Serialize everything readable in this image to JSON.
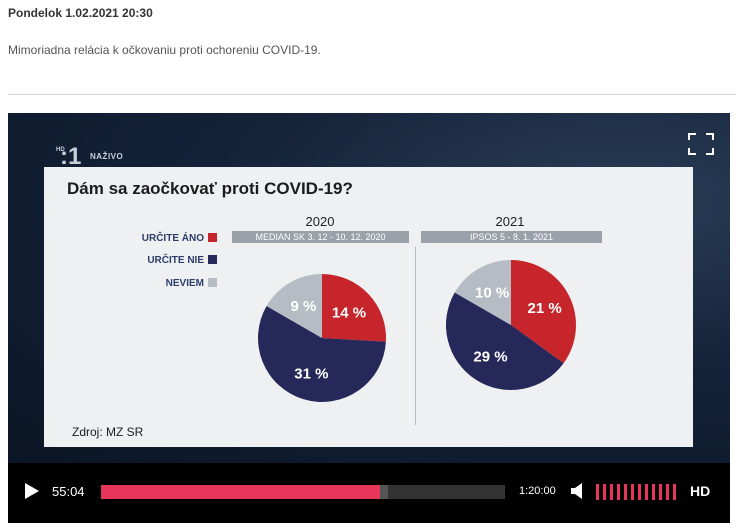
{
  "article": {
    "date": "Pondelok 1.02.2021 20:30",
    "description": "Mimoriadna relácia k očkovaniu proti ochoreniu COVID-19."
  },
  "player": {
    "channel_hd": "HD",
    "channel_number": ":1",
    "live_label": "NAŽIVO",
    "current_time": "55:04",
    "duration": "1:20:00",
    "progress": 0.69,
    "buffered": 0.71,
    "volume_level": 1.0,
    "hd_label": "HD",
    "icons": [
      "fullscreen-icon",
      "play-icon",
      "volume-icon"
    ]
  },
  "chart_data": {
    "type": "pie",
    "title": "Dám sa zaočkovať proti COVID-19?",
    "legend": [
      {
        "label": "URČITE ÁNO",
        "color": "#c5252b"
      },
      {
        "label": "URČITE NIE",
        "color": "#27285a"
      },
      {
        "label": "NEVIEM",
        "color": "#b5bcc3"
      }
    ],
    "pies": [
      {
        "year": "2020",
        "source": "MEDIAN SK 3. 12 - 10. 12. 2020",
        "values": [
          14,
          31,
          9
        ],
        "labels": [
          "14 %",
          "31 %",
          "9 %"
        ]
      },
      {
        "year": "2021",
        "source": "IPSOS 5 - 8. 1. 2021",
        "values": [
          21,
          29,
          10
        ],
        "labels": [
          "21 %",
          "29 %",
          "10 %"
        ]
      }
    ],
    "footnote": "Zdroj: MZ SR"
  }
}
